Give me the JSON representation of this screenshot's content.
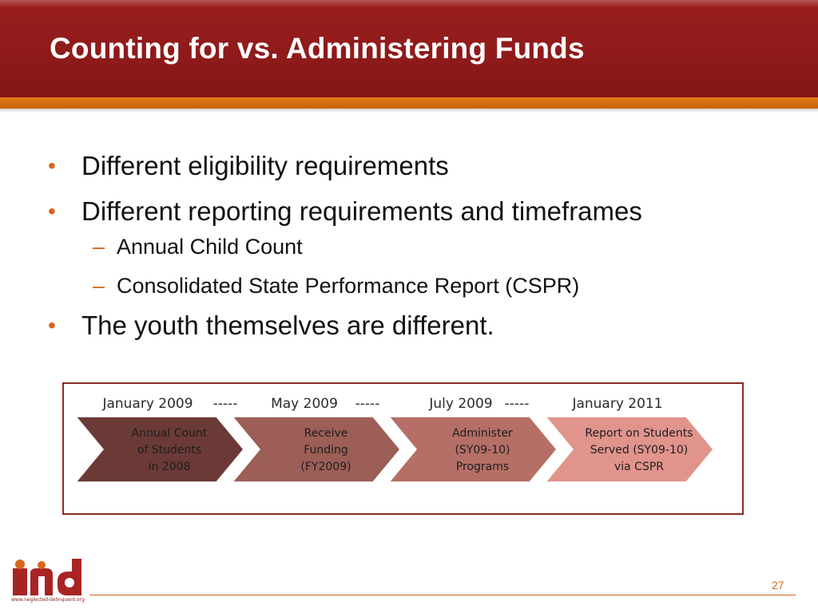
{
  "slide": {
    "title": "Counting for vs. Administering Funds",
    "page_number": "27",
    "colors": {
      "title_bar": "#8e1a1a",
      "accent_orange": "#d8661a",
      "timeline_border": "#8c2a24"
    }
  },
  "bullets": [
    {
      "marker": "•",
      "text": "Different eligibility requirements"
    },
    {
      "marker": "•",
      "text": "Different reporting requirements and timeframes"
    },
    {
      "marker": "–",
      "text": "Annual Child Count"
    },
    {
      "marker": "–",
      "text": "Consolidated State Performance Report (CSPR)"
    },
    {
      "marker": "•",
      "text": "The youth themselves are different."
    }
  ],
  "timeline": {
    "separator": "-----",
    "steps": [
      {
        "date": "January 2009",
        "lines": [
          "Annual Count",
          "of Students",
          "in 2008"
        ],
        "color": "#6b3a36"
      },
      {
        "date": "May 2009",
        "lines": [
          "Receive",
          "Funding",
          "(FY2009)"
        ],
        "color": "#9c5e57"
      },
      {
        "date": "July 2009",
        "lines": [
          "Administer",
          "(SY09-10)",
          "Programs"
        ],
        "color": "#b56f66"
      },
      {
        "date": "January 2011",
        "lines": [
          "Report on Students",
          "Served (SY09-10)",
          "via CSPR"
        ],
        "color": "#e0948c"
      }
    ]
  },
  "logo": {
    "icon": "neglected-delinquent-logo",
    "url_text": "www.neglected-delinquent.org"
  }
}
